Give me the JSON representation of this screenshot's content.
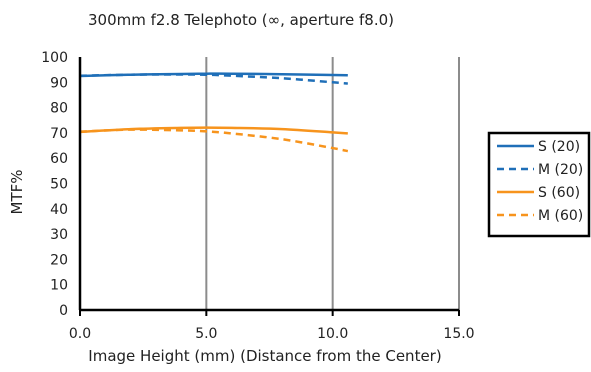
{
  "chart_data": {
    "type": "line",
    "title": "300mm  f2.8 Telephoto (∞, aperture f8.0)",
    "xlabel": "Image Height (mm) (Distance from the Center)",
    "ylabel": "MTF%",
    "xlim": [
      0,
      15
    ],
    "ylim": [
      0,
      100
    ],
    "xticks": [
      "0.0",
      "5.0",
      "10.0",
      "15.0"
    ],
    "xtick_values": [
      0,
      5,
      10,
      15
    ],
    "yticks": [
      0,
      10,
      20,
      30,
      40,
      50,
      60,
      70,
      80,
      90,
      100
    ],
    "grid": "vertical",
    "legend": "right",
    "series": [
      {
        "name": "S (20)",
        "color": "#1f6fb8",
        "dash": "solid",
        "x": [
          0,
          2,
          4,
          5,
          6,
          8,
          10,
          10.6
        ],
        "y": [
          92.5,
          93,
          93.3,
          93.4,
          93.4,
          93.2,
          92.9,
          92.8
        ]
      },
      {
        "name": "M (20)",
        "color": "#1f6fb8",
        "dash": "dashed",
        "x": [
          0,
          2,
          4,
          5,
          6,
          8,
          10,
          10.6
        ],
        "y": [
          92.6,
          93,
          93.1,
          93,
          92.6,
          91.6,
          90,
          89.5
        ]
      },
      {
        "name": "S (60)",
        "color": "#f7941d",
        "dash": "solid",
        "x": [
          0,
          2,
          4,
          5,
          6,
          8,
          10,
          10.6
        ],
        "y": [
          70.4,
          71.5,
          72,
          72.1,
          72,
          71.5,
          70.2,
          69.8
        ]
      },
      {
        "name": "M (60)",
        "color": "#f7941d",
        "dash": "dashed",
        "x": [
          0,
          2,
          4,
          5,
          6,
          8,
          10,
          10.6
        ],
        "y": [
          70.5,
          71.3,
          71,
          70.6,
          69.8,
          67.5,
          64,
          62.8
        ]
      }
    ]
  }
}
